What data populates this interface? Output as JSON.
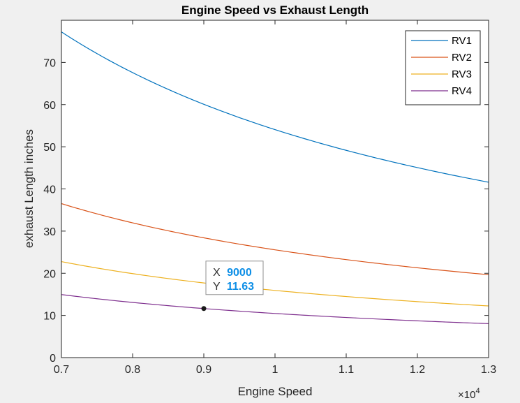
{
  "chart_data": {
    "type": "line",
    "title": "Engine Speed vs Exhaust Length",
    "xlabel": "Engine Speed",
    "ylabel": "exhaust Length inches",
    "x_exponent_label": "×10",
    "x_exponent_power": "4",
    "xlim": [
      7000,
      13000
    ],
    "ylim": [
      0,
      80
    ],
    "xticks": [
      7000,
      8000,
      9000,
      10000,
      11000,
      12000,
      13000
    ],
    "xtick_labels": [
      "0.7",
      "0.8",
      "0.9",
      "1",
      "1.1",
      "1.2",
      "1.3"
    ],
    "yticks": [
      0,
      10,
      20,
      30,
      40,
      50,
      60,
      70
    ],
    "ytick_labels": [
      "0",
      "10",
      "20",
      "30",
      "40",
      "50",
      "60",
      "70"
    ],
    "grid": false,
    "legend_position": "top-right",
    "series": [
      {
        "name": "RV1",
        "color": "#0072BD",
        "k": 540680
      },
      {
        "name": "RV2",
        "color": "#D95319",
        "k": 255640
      },
      {
        "name": "RV3",
        "color": "#EDB120",
        "k": 159320
      },
      {
        "name": "RV4",
        "color": "#7E2F8E",
        "k": 104670
      }
    ],
    "model": "y = k / x",
    "datatip": {
      "x": 9000,
      "y": 11.63,
      "x_label": "X",
      "y_label": "Y",
      "x_text": "9000",
      "y_text": "11.63"
    }
  }
}
